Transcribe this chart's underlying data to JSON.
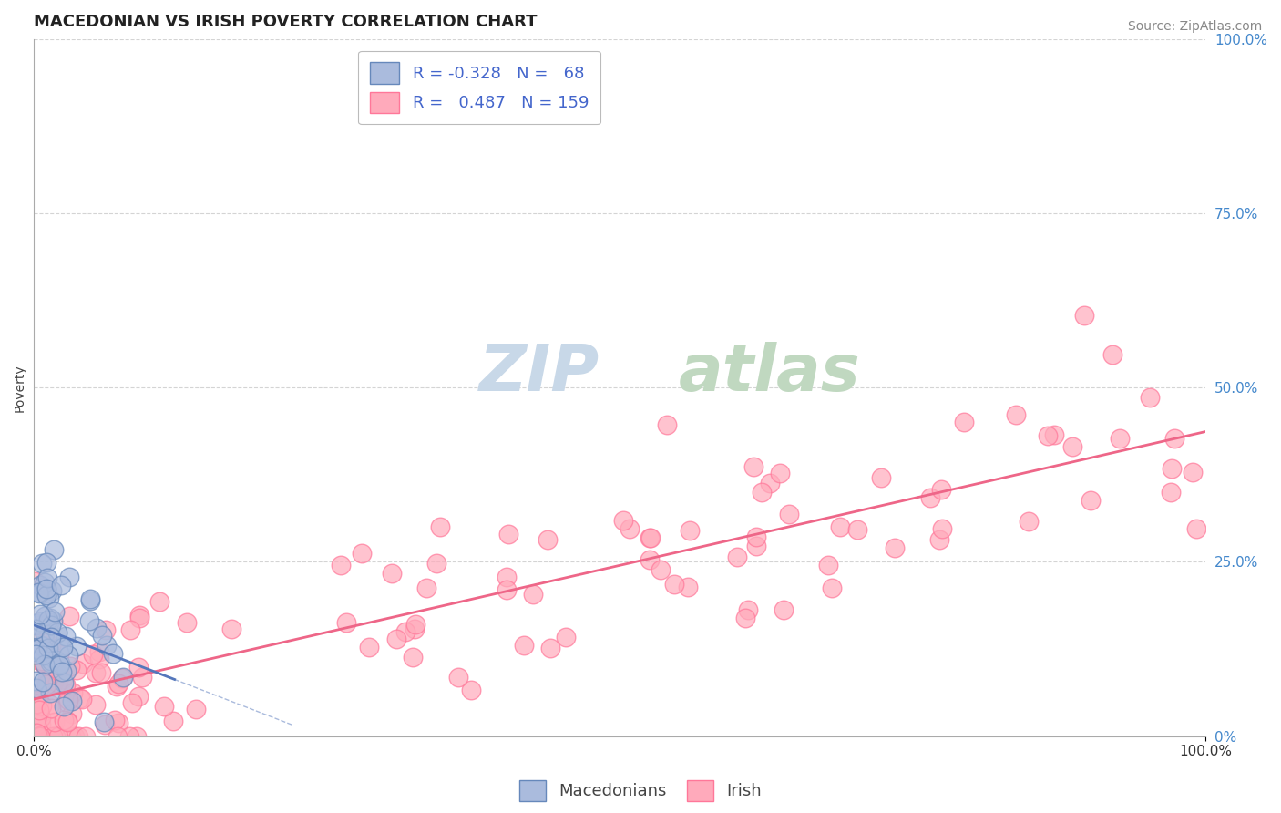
{
  "title": "MACEDONIAN VS IRISH POVERTY CORRELATION CHART",
  "source_text": "Source: ZipAtlas.com",
  "ylabel": "Poverty",
  "watermark_zip": "ZIP",
  "watermark_atlas": "atlas",
  "xlim": [
    0.0,
    1.0
  ],
  "ylim": [
    0.0,
    1.0
  ],
  "x_tick_labels": [
    "0.0%",
    "100.0%"
  ],
  "y_tick_labels_right": [
    "100.0%",
    "75.0%",
    "50.0%",
    "25.0%",
    "0%"
  ],
  "y_tick_positions_right": [
    1.0,
    0.75,
    0.5,
    0.25,
    0.0
  ],
  "macedonian_color": "#AABBDD",
  "irish_color": "#FFAABB",
  "macedonian_edge": "#6688BB",
  "irish_edge": "#FF7799",
  "trend_macedonian_color": "#5577BB",
  "trend_irish_color": "#EE6688",
  "legend_label_color": "#4466CC",
  "R_mac": -0.328,
  "N_mac": 68,
  "R_iri": 0.487,
  "N_iri": 159,
  "title_fontsize": 13,
  "axis_label_fontsize": 10,
  "tick_fontsize": 11,
  "legend_fontsize": 13,
  "source_fontsize": 10,
  "watermark_fontsize": 52,
  "watermark_color_zip": "#C8D8E8",
  "watermark_color_atlas": "#C0D8C0",
  "background_color": "#FFFFFF",
  "grid_color": "#AAAAAA",
  "grid_style": "--",
  "grid_alpha": 0.5,
  "scatter_alpha": 0.7,
  "scatter_size_mac": 220,
  "scatter_size_iri": 220
}
